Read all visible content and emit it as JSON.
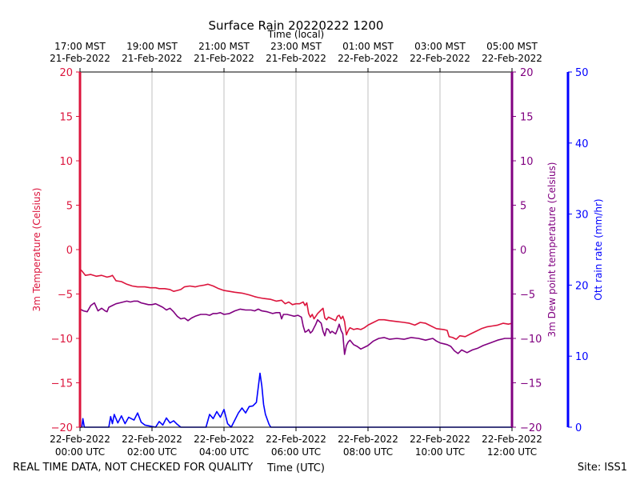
{
  "chart_data": {
    "type": "line",
    "title": "Surface Rain 20220222 1200",
    "top_axis_label": "Time (local)",
    "xlabel": "Time (UTC)",
    "ylabel_left": "3m Temperature (Celsius)",
    "ylabel_right": "3m Dew point temperature (Celsius)",
    "ylabel_rain": "Ott rain rate (mm/hr)",
    "footer_left": "REAL TIME DATA, NOT CHECKED FOR QUALITY",
    "footer_right": "Site: ISS1",
    "xlim_hours": [
      0,
      12
    ],
    "ylim_temp": [
      -20,
      20
    ],
    "ylim_rain": [
      0,
      50
    ],
    "grid_x": true,
    "colors": {
      "temperature": "#dc143c",
      "dewpoint": "#800080",
      "rain": "#0000ff",
      "grid": "#b0b0b0"
    },
    "temp_ticks": [
      {
        "v": -20,
        "label": "−20"
      },
      {
        "v": -15,
        "label": "−15"
      },
      {
        "v": -10,
        "label": "−10"
      },
      {
        "v": -5,
        "label": "−5"
      },
      {
        "v": 0,
        "label": "0"
      },
      {
        "v": 5,
        "label": "5"
      },
      {
        "v": 10,
        "label": "10"
      },
      {
        "v": 15,
        "label": "15"
      },
      {
        "v": 20,
        "label": "20"
      }
    ],
    "rain_ticks": [
      {
        "v": 0,
        "label": "0"
      },
      {
        "v": 10,
        "label": "10"
      },
      {
        "v": 20,
        "label": "20"
      },
      {
        "v": 30,
        "label": "30"
      },
      {
        "v": 40,
        "label": "40"
      },
      {
        "v": 50,
        "label": "50"
      }
    ],
    "x_ticks_utc": [
      {
        "h": 0,
        "line1": "22-Feb-2022",
        "line2": "00:00 UTC"
      },
      {
        "h": 2,
        "line1": "22-Feb-2022",
        "line2": "02:00 UTC"
      },
      {
        "h": 4,
        "line1": "22-Feb-2022",
        "line2": "04:00 UTC"
      },
      {
        "h": 6,
        "line1": "22-Feb-2022",
        "line2": "06:00 UTC"
      },
      {
        "h": 8,
        "line1": "22-Feb-2022",
        "line2": "08:00 UTC"
      },
      {
        "h": 10,
        "line1": "22-Feb-2022",
        "line2": "10:00 UTC"
      },
      {
        "h": 12,
        "line1": "22-Feb-2022",
        "line2": "12:00 UTC"
      }
    ],
    "x_ticks_local": [
      {
        "h": 0,
        "line1": "17:00 MST",
        "line2": "21-Feb-2022"
      },
      {
        "h": 2,
        "line1": "19:00 MST",
        "line2": "21-Feb-2022"
      },
      {
        "h": 4,
        "line1": "21:00 MST",
        "line2": "21-Feb-2022"
      },
      {
        "h": 6,
        "line1": "23:00 MST",
        "line2": "21-Feb-2022"
      },
      {
        "h": 8,
        "line1": "01:00 MST",
        "line2": "22-Feb-2022"
      },
      {
        "h": 10,
        "line1": "03:00 MST",
        "line2": "22-Feb-2022"
      },
      {
        "h": 12,
        "line1": "05:00 MST",
        "line2": "22-Feb-2022"
      }
    ],
    "series": [
      {
        "name": "3m Temperature",
        "units": "Celsius",
        "x": [
          0,
          0.05,
          0.15,
          0.3,
          0.45,
          0.6,
          0.75,
          0.85,
          0.9,
          1.0,
          1.15,
          1.3,
          1.45,
          1.6,
          1.8,
          1.95,
          2.1,
          2.2,
          2.35,
          2.5,
          2.6,
          2.7,
          2.8,
          2.9,
          3.05,
          3.2,
          3.3,
          3.45,
          3.55,
          3.7,
          3.85,
          4.0,
          4.15,
          4.3,
          4.5,
          4.7,
          4.85,
          4.95,
          5.1,
          5.3,
          5.45,
          5.6,
          5.7,
          5.8,
          5.9,
          6.0,
          6.1,
          6.2,
          6.25,
          6.3,
          6.35,
          6.4,
          6.45,
          6.5,
          6.55,
          6.6,
          6.7,
          6.75,
          6.8,
          6.85,
          6.9,
          6.95,
          7.05,
          7.1,
          7.15,
          7.2,
          7.25,
          7.3,
          7.35,
          7.4,
          7.45,
          7.5,
          7.6,
          7.7,
          7.8,
          7.9,
          8.0,
          8.15,
          8.3,
          8.45,
          8.6,
          8.8,
          9.0,
          9.15,
          9.3,
          9.45,
          9.6,
          9.75,
          9.9,
          10.1,
          10.2,
          10.25,
          10.35,
          10.45,
          10.55,
          10.7,
          10.85,
          11.0,
          11.15,
          11.3,
          11.45,
          11.6,
          11.75,
          11.9,
          12.0
        ],
        "values": [
          -2.2,
          -2.4,
          -2.9,
          -2.8,
          -3.0,
          -2.9,
          -3.1,
          -3.0,
          -2.9,
          -3.5,
          -3.6,
          -3.9,
          -4.1,
          -4.2,
          -4.2,
          -4.3,
          -4.3,
          -4.4,
          -4.4,
          -4.5,
          -4.7,
          -4.6,
          -4.5,
          -4.2,
          -4.1,
          -4.2,
          -4.1,
          -4.0,
          -3.9,
          -4.1,
          -4.4,
          -4.6,
          -4.7,
          -4.8,
          -4.9,
          -5.1,
          -5.3,
          -5.4,
          -5.5,
          -5.6,
          -5.8,
          -5.7,
          -6.1,
          -5.9,
          -6.2,
          -6.1,
          -6.1,
          -5.9,
          -6.3,
          -6.0,
          -7.2,
          -7.6,
          -7.3,
          -7.8,
          -7.5,
          -7.2,
          -6.8,
          -6.6,
          -7.7,
          -7.9,
          -7.6,
          -7.7,
          -7.9,
          -8.0,
          -7.5,
          -7.4,
          -7.8,
          -7.5,
          -8.1,
          -9.6,
          -9.1,
          -8.8,
          -9.0,
          -8.9,
          -9.0,
          -8.8,
          -8.5,
          -8.2,
          -7.9,
          -7.9,
          -8.0,
          -8.1,
          -8.2,
          -8.3,
          -8.5,
          -8.2,
          -8.3,
          -8.6,
          -8.9,
          -9.0,
          -9.1,
          -9.8,
          -9.9,
          -10.1,
          -9.7,
          -9.8,
          -9.5,
          -9.2,
          -8.9,
          -8.7,
          -8.6,
          -8.5,
          -8.3,
          -8.4,
          -8.3
        ]
      },
      {
        "name": "3m Dew point temperature",
        "units": "Celsius",
        "x": [
          0,
          0.1,
          0.2,
          0.3,
          0.4,
          0.5,
          0.6,
          0.7,
          0.75,
          0.8,
          0.9,
          1.0,
          1.1,
          1.2,
          1.3,
          1.4,
          1.5,
          1.6,
          1.7,
          1.8,
          1.9,
          2.0,
          2.1,
          2.2,
          2.3,
          2.4,
          2.5,
          2.6,
          2.7,
          2.8,
          2.9,
          3.0,
          3.1,
          3.2,
          3.35,
          3.5,
          3.6,
          3.7,
          3.8,
          3.9,
          4.0,
          4.15,
          4.3,
          4.45,
          4.6,
          4.75,
          4.85,
          4.95,
          5.05,
          5.2,
          5.35,
          5.45,
          5.55,
          5.6,
          5.65,
          5.75,
          5.85,
          5.95,
          6.05,
          6.15,
          6.2,
          6.25,
          6.3,
          6.35,
          6.4,
          6.45,
          6.5,
          6.55,
          6.6,
          6.7,
          6.75,
          6.8,
          6.85,
          6.9,
          6.95,
          7.0,
          7.1,
          7.15,
          7.2,
          7.25,
          7.3,
          7.35,
          7.4,
          7.45,
          7.5,
          7.6,
          7.7,
          7.8,
          7.9,
          8.0,
          8.15,
          8.3,
          8.45,
          8.6,
          8.8,
          9.0,
          9.2,
          9.4,
          9.6,
          9.8,
          9.9,
          10.0,
          10.1,
          10.2,
          10.3,
          10.4,
          10.5,
          10.6,
          10.75,
          10.9,
          11.05,
          11.2,
          11.4,
          11.6,
          11.8,
          12.0
        ],
        "values": [
          -6.7,
          -6.9,
          -7.0,
          -6.3,
          -6.0,
          -6.9,
          -6.6,
          -6.9,
          -7.0,
          -6.5,
          -6.3,
          -6.1,
          -6.0,
          -5.9,
          -5.8,
          -5.9,
          -5.8,
          -5.8,
          -6.0,
          -6.1,
          -6.2,
          -6.2,
          -6.1,
          -6.3,
          -6.5,
          -6.8,
          -6.6,
          -7.0,
          -7.5,
          -7.8,
          -7.7,
          -8.0,
          -7.7,
          -7.5,
          -7.3,
          -7.3,
          -7.4,
          -7.2,
          -7.2,
          -7.1,
          -7.3,
          -7.2,
          -6.9,
          -6.7,
          -6.8,
          -6.8,
          -6.9,
          -6.7,
          -6.9,
          -7.0,
          -7.2,
          -7.1,
          -7.1,
          -7.8,
          -7.3,
          -7.3,
          -7.4,
          -7.5,
          -7.4,
          -7.6,
          -8.6,
          -9.3,
          -9.2,
          -9.0,
          -9.4,
          -9.2,
          -8.8,
          -8.4,
          -7.9,
          -8.3,
          -9.2,
          -9.7,
          -8.9,
          -9.0,
          -9.4,
          -9.2,
          -9.5,
          -9.0,
          -8.4,
          -9.1,
          -9.5,
          -11.8,
          -10.8,
          -10.4,
          -10.2,
          -10.7,
          -10.9,
          -11.2,
          -11.0,
          -10.8,
          -10.3,
          -10.0,
          -9.9,
          -10.1,
          -10.0,
          -10.1,
          -9.9,
          -10.0,
          -10.2,
          -10.0,
          -10.3,
          -10.5,
          -10.6,
          -10.7,
          -10.9,
          -11.4,
          -11.7,
          -11.3,
          -11.6,
          -11.3,
          -11.1,
          -10.8,
          -10.5,
          -10.2,
          -10.0,
          -10.0
        ]
      },
      {
        "name": "Ott rain rate",
        "units": "mm/hr",
        "x": [
          0,
          0.05,
          0.08,
          0.12,
          0.6,
          0.8,
          0.85,
          0.9,
          0.95,
          1.05,
          1.15,
          1.25,
          1.35,
          1.5,
          1.6,
          1.7,
          1.8,
          2.1,
          2.2,
          2.3,
          2.4,
          2.5,
          2.6,
          2.7,
          2.8,
          3.5,
          3.6,
          3.7,
          3.8,
          3.9,
          4.0,
          4.1,
          4.2,
          4.3,
          4.4,
          4.5,
          4.6,
          4.7,
          4.8,
          4.9,
          5.0,
          5.05,
          5.1,
          5.15,
          5.25,
          5.3,
          12.0
        ],
        "values": [
          0,
          0,
          1.2,
          0,
          0,
          0,
          1.5,
          0.5,
          1.8,
          0.6,
          1.6,
          0.5,
          1.4,
          1.0,
          2.0,
          0.7,
          0.3,
          0,
          0.8,
          0.3,
          1.3,
          0.6,
          0.9,
          0.4,
          0,
          0,
          1.8,
          1.2,
          2.2,
          1.4,
          2.5,
          0.5,
          0.0,
          1.0,
          2.0,
          2.7,
          2.0,
          2.9,
          3.0,
          3.5,
          7.6,
          5.8,
          3.2,
          1.8,
          0.4,
          0,
          0
        ]
      }
    ]
  }
}
